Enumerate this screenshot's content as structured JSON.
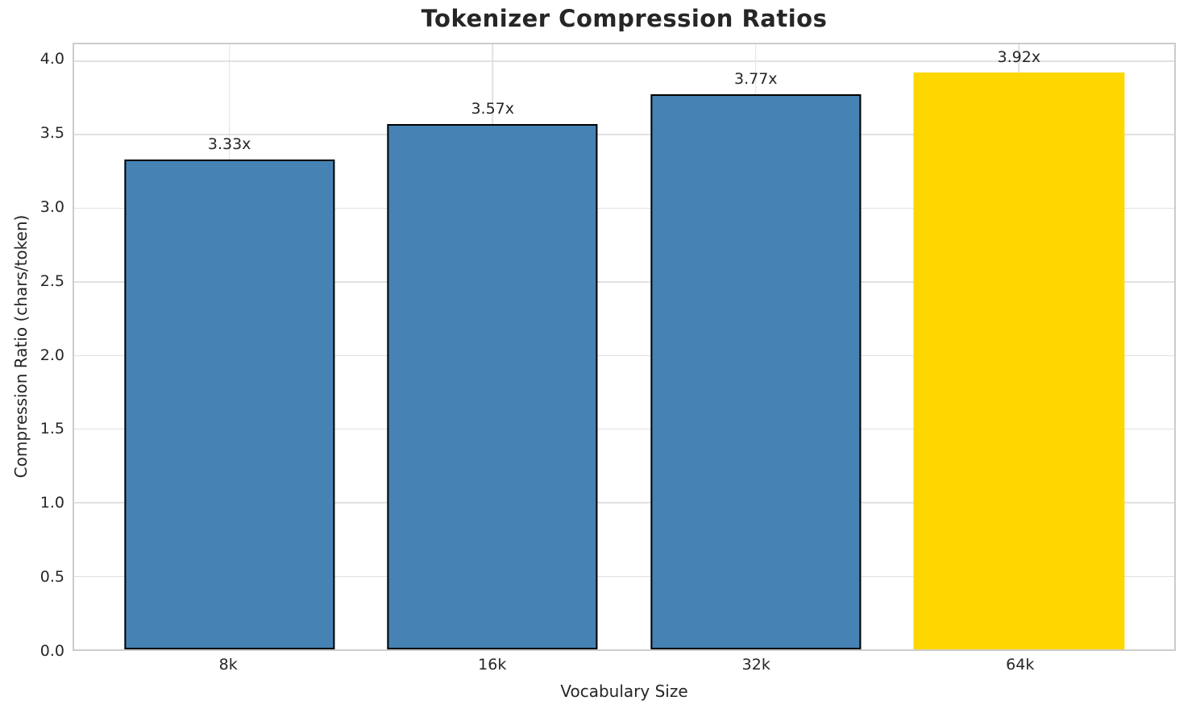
{
  "chart_data": {
    "type": "bar",
    "title": "Tokenizer Compression Ratios",
    "xlabel": "Vocabulary Size",
    "ylabel": "Compression Ratio (chars/token)",
    "categories": [
      "8k",
      "16k",
      "32k",
      "64k"
    ],
    "values": [
      3.33,
      3.57,
      3.77,
      3.92
    ],
    "bar_labels": [
      "3.33x",
      "3.57x",
      "3.77x",
      "3.92x"
    ],
    "ylim": [
      0,
      4.11
    ],
    "yticks": [
      0.0,
      0.5,
      1.0,
      1.5,
      2.0,
      2.5,
      3.0,
      3.5,
      4.0
    ],
    "ytick_labels": [
      "0.0",
      "0.5",
      "1.0",
      "1.5",
      "2.0",
      "2.5",
      "3.0",
      "3.5",
      "4.0"
    ],
    "grid": "both",
    "legend": "none",
    "bar_colors": [
      "#4682B4",
      "#4682B4",
      "#4682B4",
      "#FFD700"
    ],
    "bar_has_edge": [
      true,
      true,
      true,
      false
    ],
    "colors": {
      "bar_default": "#4682B4",
      "bar_highlight": "#FFD700",
      "bar_edge": "#000000",
      "text": "#262626",
      "grid": "#e1e1e1",
      "spine": "#cccccc",
      "background": "#ffffff"
    },
    "layout": {
      "x_margin_units": 0.59,
      "x_range_units": 4.18,
      "bar_width_units": 0.8
    }
  }
}
